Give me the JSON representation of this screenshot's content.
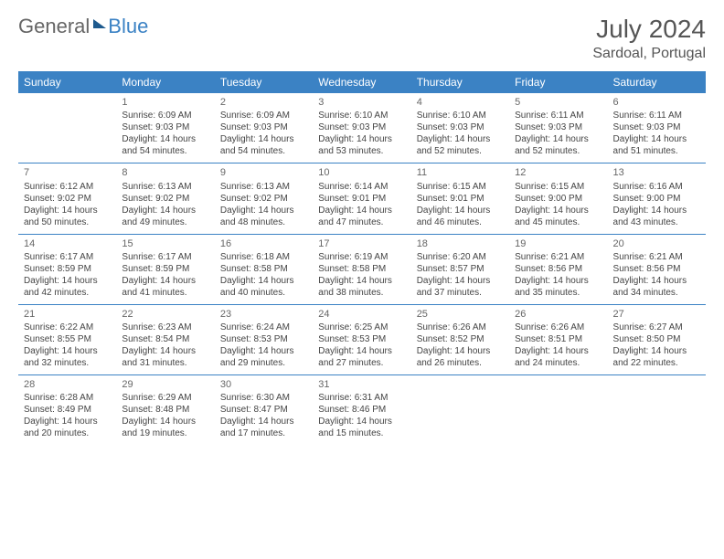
{
  "colors": {
    "header_bg": "#3b82c4",
    "header_text": "#ffffff",
    "cell_border": "#3b82c4",
    "body_text": "#444444",
    "title_text": "#555555",
    "logo_gray": "#666666",
    "logo_blue": "#3b82c4",
    "background": "#ffffff"
  },
  "logo": {
    "part1": "General",
    "part2": "Blue"
  },
  "title": "July 2024",
  "location": "Sardoal, Portugal",
  "weekdays": [
    "Sunday",
    "Monday",
    "Tuesday",
    "Wednesday",
    "Thursday",
    "Friday",
    "Saturday"
  ],
  "typography": {
    "title_fontsize": 28,
    "location_fontsize": 16,
    "weekday_fontsize": 12,
    "cell_fontsize": 10,
    "daynum_fontsize": 11
  },
  "weeks": [
    [
      {
        "day": "",
        "sunrise": "",
        "sunset": "",
        "daylight": ""
      },
      {
        "day": "1",
        "sunrise": "Sunrise: 6:09 AM",
        "sunset": "Sunset: 9:03 PM",
        "daylight": "Daylight: 14 hours and 54 minutes."
      },
      {
        "day": "2",
        "sunrise": "Sunrise: 6:09 AM",
        "sunset": "Sunset: 9:03 PM",
        "daylight": "Daylight: 14 hours and 54 minutes."
      },
      {
        "day": "3",
        "sunrise": "Sunrise: 6:10 AM",
        "sunset": "Sunset: 9:03 PM",
        "daylight": "Daylight: 14 hours and 53 minutes."
      },
      {
        "day": "4",
        "sunrise": "Sunrise: 6:10 AM",
        "sunset": "Sunset: 9:03 PM",
        "daylight": "Daylight: 14 hours and 52 minutes."
      },
      {
        "day": "5",
        "sunrise": "Sunrise: 6:11 AM",
        "sunset": "Sunset: 9:03 PM",
        "daylight": "Daylight: 14 hours and 52 minutes."
      },
      {
        "day": "6",
        "sunrise": "Sunrise: 6:11 AM",
        "sunset": "Sunset: 9:03 PM",
        "daylight": "Daylight: 14 hours and 51 minutes."
      }
    ],
    [
      {
        "day": "7",
        "sunrise": "Sunrise: 6:12 AM",
        "sunset": "Sunset: 9:02 PM",
        "daylight": "Daylight: 14 hours and 50 minutes."
      },
      {
        "day": "8",
        "sunrise": "Sunrise: 6:13 AM",
        "sunset": "Sunset: 9:02 PM",
        "daylight": "Daylight: 14 hours and 49 minutes."
      },
      {
        "day": "9",
        "sunrise": "Sunrise: 6:13 AM",
        "sunset": "Sunset: 9:02 PM",
        "daylight": "Daylight: 14 hours and 48 minutes."
      },
      {
        "day": "10",
        "sunrise": "Sunrise: 6:14 AM",
        "sunset": "Sunset: 9:01 PM",
        "daylight": "Daylight: 14 hours and 47 minutes."
      },
      {
        "day": "11",
        "sunrise": "Sunrise: 6:15 AM",
        "sunset": "Sunset: 9:01 PM",
        "daylight": "Daylight: 14 hours and 46 minutes."
      },
      {
        "day": "12",
        "sunrise": "Sunrise: 6:15 AM",
        "sunset": "Sunset: 9:00 PM",
        "daylight": "Daylight: 14 hours and 45 minutes."
      },
      {
        "day": "13",
        "sunrise": "Sunrise: 6:16 AM",
        "sunset": "Sunset: 9:00 PM",
        "daylight": "Daylight: 14 hours and 43 minutes."
      }
    ],
    [
      {
        "day": "14",
        "sunrise": "Sunrise: 6:17 AM",
        "sunset": "Sunset: 8:59 PM",
        "daylight": "Daylight: 14 hours and 42 minutes."
      },
      {
        "day": "15",
        "sunrise": "Sunrise: 6:17 AM",
        "sunset": "Sunset: 8:59 PM",
        "daylight": "Daylight: 14 hours and 41 minutes."
      },
      {
        "day": "16",
        "sunrise": "Sunrise: 6:18 AM",
        "sunset": "Sunset: 8:58 PM",
        "daylight": "Daylight: 14 hours and 40 minutes."
      },
      {
        "day": "17",
        "sunrise": "Sunrise: 6:19 AM",
        "sunset": "Sunset: 8:58 PM",
        "daylight": "Daylight: 14 hours and 38 minutes."
      },
      {
        "day": "18",
        "sunrise": "Sunrise: 6:20 AM",
        "sunset": "Sunset: 8:57 PM",
        "daylight": "Daylight: 14 hours and 37 minutes."
      },
      {
        "day": "19",
        "sunrise": "Sunrise: 6:21 AM",
        "sunset": "Sunset: 8:56 PM",
        "daylight": "Daylight: 14 hours and 35 minutes."
      },
      {
        "day": "20",
        "sunrise": "Sunrise: 6:21 AM",
        "sunset": "Sunset: 8:56 PM",
        "daylight": "Daylight: 14 hours and 34 minutes."
      }
    ],
    [
      {
        "day": "21",
        "sunrise": "Sunrise: 6:22 AM",
        "sunset": "Sunset: 8:55 PM",
        "daylight": "Daylight: 14 hours and 32 minutes."
      },
      {
        "day": "22",
        "sunrise": "Sunrise: 6:23 AM",
        "sunset": "Sunset: 8:54 PM",
        "daylight": "Daylight: 14 hours and 31 minutes."
      },
      {
        "day": "23",
        "sunrise": "Sunrise: 6:24 AM",
        "sunset": "Sunset: 8:53 PM",
        "daylight": "Daylight: 14 hours and 29 minutes."
      },
      {
        "day": "24",
        "sunrise": "Sunrise: 6:25 AM",
        "sunset": "Sunset: 8:53 PM",
        "daylight": "Daylight: 14 hours and 27 minutes."
      },
      {
        "day": "25",
        "sunrise": "Sunrise: 6:26 AM",
        "sunset": "Sunset: 8:52 PM",
        "daylight": "Daylight: 14 hours and 26 minutes."
      },
      {
        "day": "26",
        "sunrise": "Sunrise: 6:26 AM",
        "sunset": "Sunset: 8:51 PM",
        "daylight": "Daylight: 14 hours and 24 minutes."
      },
      {
        "day": "27",
        "sunrise": "Sunrise: 6:27 AM",
        "sunset": "Sunset: 8:50 PM",
        "daylight": "Daylight: 14 hours and 22 minutes."
      }
    ],
    [
      {
        "day": "28",
        "sunrise": "Sunrise: 6:28 AM",
        "sunset": "Sunset: 8:49 PM",
        "daylight": "Daylight: 14 hours and 20 minutes."
      },
      {
        "day": "29",
        "sunrise": "Sunrise: 6:29 AM",
        "sunset": "Sunset: 8:48 PM",
        "daylight": "Daylight: 14 hours and 19 minutes."
      },
      {
        "day": "30",
        "sunrise": "Sunrise: 6:30 AM",
        "sunset": "Sunset: 8:47 PM",
        "daylight": "Daylight: 14 hours and 17 minutes."
      },
      {
        "day": "31",
        "sunrise": "Sunrise: 6:31 AM",
        "sunset": "Sunset: 8:46 PM",
        "daylight": "Daylight: 14 hours and 15 minutes."
      },
      {
        "day": "",
        "sunrise": "",
        "sunset": "",
        "daylight": ""
      },
      {
        "day": "",
        "sunrise": "",
        "sunset": "",
        "daylight": ""
      },
      {
        "day": "",
        "sunrise": "",
        "sunset": "",
        "daylight": ""
      }
    ]
  ]
}
